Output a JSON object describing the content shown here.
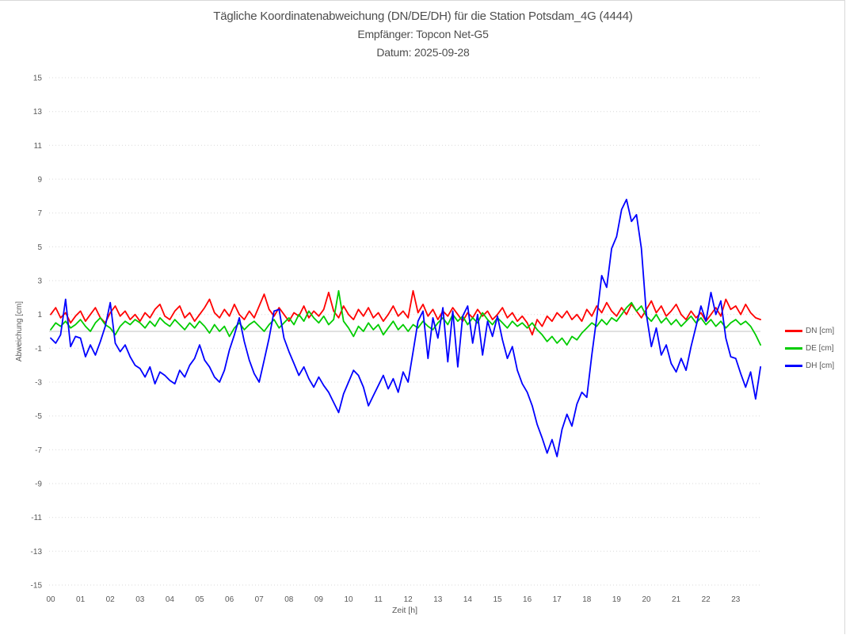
{
  "colors": {
    "grid": "#d9d9d9",
    "zero_line": "#c3c3c3",
    "frame_border": "#d9d9d9",
    "tick_text": "#595959",
    "title_text": "#4d4d4d",
    "dn": "#ff0000",
    "de": "#00cc00",
    "dh": "#0000ff"
  },
  "chart_data": {
    "type": "line",
    "title": "Tägliche Koordinatenabweichung (DN/DE/DH) für die Station Potsdam_4G (4444)",
    "subtitle_receiver": "Empfänger: Topcon Net-G5",
    "subtitle_date": "Datum: 2025-09-28",
    "xlabel": "Zeit [h]",
    "ylabel": "Abweichung [cm]",
    "xlim": [
      0,
      24
    ],
    "ylim": [
      -15,
      15
    ],
    "x_ticks": [
      "00",
      "01",
      "02",
      "03",
      "04",
      "05",
      "06",
      "07",
      "08",
      "09",
      "10",
      "11",
      "12",
      "13",
      "14",
      "15",
      "16",
      "17",
      "18",
      "19",
      "20",
      "21",
      "22",
      "23"
    ],
    "y_ticks": [
      15,
      13,
      11,
      9,
      7,
      5,
      3,
      1,
      -1,
      -3,
      -5,
      -7,
      -9,
      -11,
      -13,
      -15
    ],
    "grid": "horizontal-dotted",
    "zero_line": true,
    "legend_position": "right-middle",
    "sample_step_minutes": 10,
    "series": [
      {
        "id": "dn",
        "name": "DN [cm]",
        "color": "#ff0000",
        "values": [
          1.0,
          1.4,
          0.8,
          1.1,
          0.5,
          0.9,
          1.2,
          0.6,
          1.0,
          1.4,
          0.8,
          0.5,
          1.1,
          1.5,
          0.9,
          1.2,
          0.7,
          1.0,
          0.6,
          1.1,
          0.8,
          1.3,
          1.6,
          0.9,
          0.7,
          1.2,
          1.5,
          0.8,
          1.1,
          0.6,
          1.0,
          1.4,
          1.9,
          1.1,
          0.8,
          1.3,
          0.9,
          1.6,
          1.0,
          0.7,
          1.2,
          0.8,
          1.5,
          2.2,
          1.3,
          0.9,
          1.4,
          1.0,
          0.6,
          1.1,
          0.9,
          1.5,
          0.8,
          1.2,
          0.9,
          1.3,
          2.3,
          1.2,
          0.8,
          1.5,
          1.0,
          0.7,
          1.3,
          0.9,
          1.4,
          0.8,
          1.1,
          0.6,
          1.0,
          1.5,
          0.9,
          1.2,
          0.8,
          2.4,
          1.1,
          1.6,
          0.9,
          1.3,
          0.7,
          1.2,
          0.9,
          1.4,
          1.0,
          0.6,
          1.1,
          0.8,
          1.3,
          0.9,
          1.2,
          0.7,
          1.0,
          1.4,
          0.8,
          1.1,
          0.6,
          0.9,
          0.5,
          -0.2,
          0.7,
          0.3,
          0.9,
          0.6,
          1.1,
          0.8,
          1.2,
          0.7,
          1.0,
          0.6,
          1.3,
          0.9,
          1.5,
          1.1,
          1.7,
          1.2,
          0.9,
          1.4,
          1.0,
          1.6,
          1.2,
          0.8,
          1.3,
          1.8,
          1.1,
          1.5,
          0.9,
          1.2,
          1.6,
          1.0,
          0.7,
          1.2,
          0.8,
          1.1,
          0.6,
          1.0,
          1.4,
          0.9,
          1.9,
          1.3,
          1.5,
          1.0,
          1.6,
          1.1,
          0.8,
          0.7
        ]
      },
      {
        "id": "de",
        "name": "DE [cm]",
        "color": "#00cc00",
        "values": [
          0.1,
          0.5,
          0.3,
          0.6,
          0.2,
          0.4,
          0.7,
          0.3,
          0.0,
          0.5,
          0.8,
          0.4,
          0.2,
          -0.2,
          0.3,
          0.6,
          0.4,
          0.7,
          0.5,
          0.2,
          0.6,
          0.3,
          0.8,
          0.5,
          0.3,
          0.7,
          0.4,
          0.1,
          0.5,
          0.2,
          0.6,
          0.3,
          -0.1,
          0.4,
          0.0,
          0.3,
          -0.3,
          0.2,
          0.5,
          0.1,
          0.4,
          0.6,
          0.3,
          0.0,
          0.4,
          0.7,
          0.2,
          0.5,
          0.8,
          0.4,
          1.0,
          0.6,
          1.2,
          0.8,
          0.5,
          0.9,
          0.4,
          0.7,
          2.4,
          0.6,
          0.2,
          -0.3,
          0.3,
          0.0,
          0.5,
          0.1,
          0.4,
          -0.2,
          0.2,
          0.6,
          0.1,
          0.4,
          0.0,
          0.4,
          0.2,
          0.6,
          0.3,
          0.1,
          0.5,
          0.8,
          0.4,
          1.0,
          0.6,
          0.9,
          0.4,
          0.8,
          0.5,
          1.1,
          0.7,
          0.4,
          0.8,
          0.5,
          0.2,
          0.6,
          0.3,
          0.5,
          0.2,
          0.5,
          0.1,
          -0.2,
          -0.6,
          -0.3,
          -0.7,
          -0.4,
          -0.8,
          -0.3,
          -0.5,
          -0.1,
          0.2,
          0.5,
          0.3,
          0.7,
          0.4,
          0.8,
          0.6,
          1.0,
          1.4,
          1.7,
          1.2,
          1.5,
          0.9,
          0.6,
          1.0,
          0.5,
          0.8,
          0.4,
          0.7,
          0.3,
          0.6,
          0.9,
          0.5,
          0.8,
          0.4,
          0.7,
          0.3,
          0.6,
          0.2,
          0.5,
          0.7,
          0.4,
          0.6,
          0.3,
          -0.2,
          -0.8
        ]
      },
      {
        "id": "dh",
        "name": "DH [cm]",
        "color": "#0000ff",
        "values": [
          -0.4,
          -0.7,
          -0.2,
          1.9,
          -0.9,
          -0.3,
          -0.4,
          -1.5,
          -0.8,
          -1.4,
          -0.6,
          0.3,
          1.7,
          -0.7,
          -1.2,
          -0.8,
          -1.5,
          -2.0,
          -2.2,
          -2.7,
          -2.1,
          -3.1,
          -2.4,
          -2.6,
          -2.9,
          -3.1,
          -2.3,
          -2.7,
          -2.0,
          -1.6,
          -0.8,
          -1.7,
          -2.1,
          -2.7,
          -3.0,
          -2.3,
          -1.1,
          -0.2,
          0.8,
          -0.6,
          -1.7,
          -2.5,
          -3.0,
          -1.7,
          -0.4,
          1.2,
          1.3,
          -0.4,
          -1.2,
          -1.9,
          -2.6,
          -2.1,
          -2.8,
          -3.3,
          -2.7,
          -3.2,
          -3.6,
          -4.2,
          -4.8,
          -3.7,
          -3.0,
          -2.3,
          -2.6,
          -3.3,
          -4.4,
          -3.8,
          -3.2,
          -2.6,
          -3.4,
          -2.8,
          -3.6,
          -2.4,
          -3.0,
          -1.2,
          0.6,
          1.2,
          -1.6,
          0.8,
          -0.4,
          1.4,
          -1.8,
          1.2,
          -2.1,
          0.9,
          1.5,
          -0.7,
          1.0,
          -1.4,
          0.6,
          -0.3,
          0.9,
          -0.5,
          -1.6,
          -0.9,
          -2.3,
          -3.1,
          -3.6,
          -4.4,
          -5.5,
          -6.3,
          -7.2,
          -6.4,
          -7.4,
          -5.8,
          -4.9,
          -5.6,
          -4.3,
          -3.6,
          -3.9,
          -1.4,
          0.8,
          3.3,
          2.6,
          4.9,
          5.6,
          7.2,
          7.8,
          6.5,
          6.9,
          4.9,
          1.0,
          -0.9,
          0.2,
          -1.4,
          -0.8,
          -1.9,
          -2.4,
          -1.6,
          -2.3,
          -0.9,
          0.3,
          1.5,
          0.6,
          2.3,
          1.0,
          1.8,
          -0.4,
          -1.5,
          -1.6,
          -2.5,
          -3.3,
          -2.4,
          -4.0,
          -2.1
        ]
      }
    ]
  }
}
